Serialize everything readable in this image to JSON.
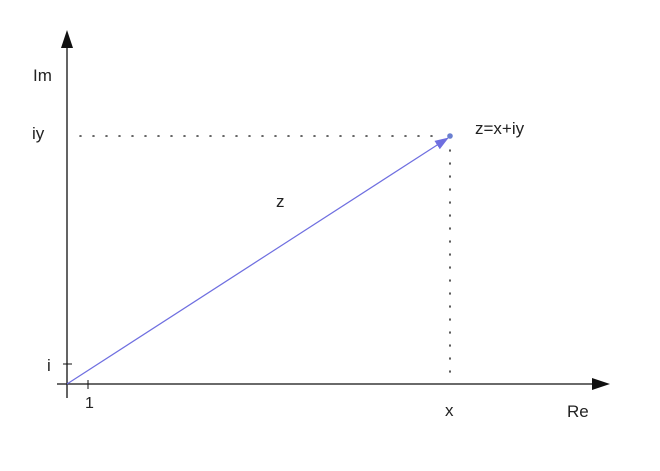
{
  "diagram": {
    "axes": {
      "horizontal_label": "Re",
      "vertical_label": "Im"
    },
    "ticks": {
      "real_unit": "1",
      "imag_unit": "i"
    },
    "point": {
      "x_label": "x",
      "y_label": "iy",
      "point_label": "z=x+iy"
    },
    "vector": {
      "label": "z",
      "color": "#6f6fe0"
    },
    "colors": {
      "axis": "#111111",
      "guide": "#333333",
      "text": "#222222"
    }
  }
}
